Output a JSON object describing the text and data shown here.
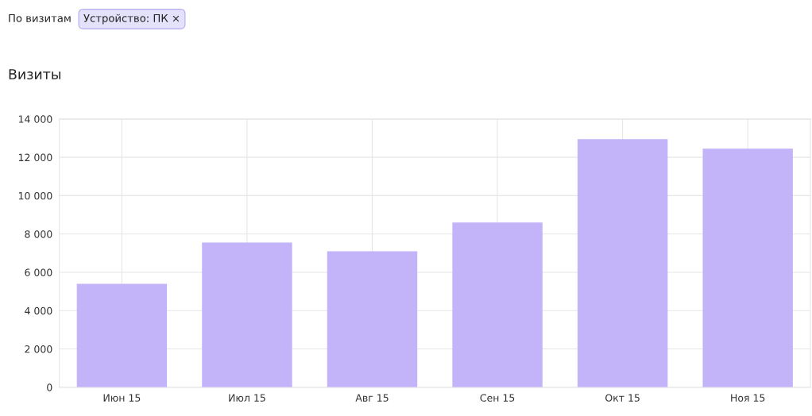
{
  "chart_data": {
    "type": "bar",
    "title": "Визиты",
    "annotations": [
      "По визитам",
      "Устройство: ПК ×"
    ],
    "categories": [
      "Июн 15",
      "Июл 15",
      "Авг 15",
      "Сен 15",
      "Окт 15",
      "Ноя 15"
    ],
    "values": [
      5400,
      7550,
      7100,
      8600,
      12950,
      12450
    ],
    "color": "#c3b3f8",
    "ylim": [
      0,
      14000
    ],
    "yticks": [
      0,
      {
        "value": 2000,
        "label": "2 000"
      },
      {
        "value": 4000,
        "label": "4 000"
      },
      {
        "value": 6000,
        "label": "6 000"
      },
      {
        "value": 8000,
        "label": "8 000"
      },
      {
        "value": 10000,
        "label": "10 000"
      },
      {
        "value": 12000,
        "label": "12 000"
      },
      {
        "value": 14000,
        "label": "14 000"
      }
    ],
    "grid": true,
    "legend": false
  }
}
